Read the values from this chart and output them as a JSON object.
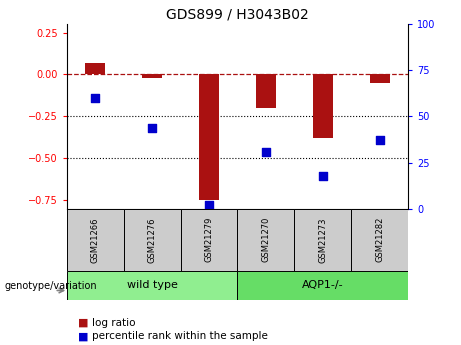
{
  "title": "GDS899 / H3043B02",
  "samples": [
    "GSM21266",
    "GSM21276",
    "GSM21279",
    "GSM21270",
    "GSM21273",
    "GSM21282"
  ],
  "log_ratio": [
    0.07,
    -0.02,
    -0.75,
    -0.2,
    -0.38,
    -0.05
  ],
  "percentile_rank": [
    60,
    44,
    2,
    31,
    18,
    37
  ],
  "ylim_left": [
    -0.8,
    0.3
  ],
  "ylim_right": [
    0,
    100
  ],
  "yticks_left": [
    -0.75,
    -0.5,
    -0.25,
    0,
    0.25
  ],
  "yticks_right": [
    0,
    25,
    50,
    75,
    100
  ],
  "hline_y": 0,
  "dotted_lines": [
    -0.25,
    -0.5
  ],
  "bar_color": "#aa1111",
  "dot_color": "#0000cc",
  "bar_width": 0.35,
  "dot_size": 40,
  "wt_color": "#90ee90",
  "aqp_color": "#66dd66",
  "sample_box_color": "#cccccc",
  "genotype_label": "genotype/variation",
  "legend_items": [
    "log ratio",
    "percentile rank within the sample"
  ],
  "legend_colors": [
    "#aa1111",
    "#0000cc"
  ],
  "title_fontsize": 10,
  "tick_fontsize": 7,
  "sample_fontsize": 6,
  "group_fontsize": 8,
  "legend_fontsize": 7.5
}
